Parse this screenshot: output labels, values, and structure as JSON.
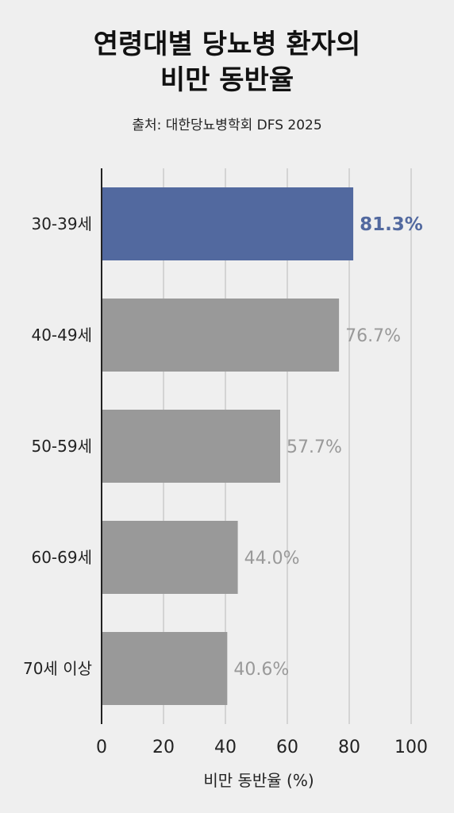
{
  "title_line1": "연령대별 당뇨병 환자의",
  "title_line2": "비만 동반율",
  "subtitle": "출처: 대한당뇨병학회 DFS 2025",
  "colors": {
    "highlight": "#52699f",
    "default": "#999999",
    "grid": "#cccccc",
    "axis": "#222222"
  },
  "chart_data": {
    "type": "bar",
    "orientation": "horizontal",
    "categories": [
      "30-39세",
      "40-49세",
      "50-59세",
      "60-69세",
      "70세 이상"
    ],
    "values": [
      81.3,
      76.7,
      57.7,
      44.0,
      40.6
    ],
    "value_labels": [
      "81.3%",
      "76.7%",
      "57.7%",
      "44.0%",
      "40.6%"
    ],
    "highlight_index": 0,
    "xlabel": "비만 동반율 (%)",
    "xlim": [
      0,
      100
    ],
    "xticks": [
      0,
      20,
      40,
      60,
      80,
      100
    ],
    "grid": "vertical"
  }
}
